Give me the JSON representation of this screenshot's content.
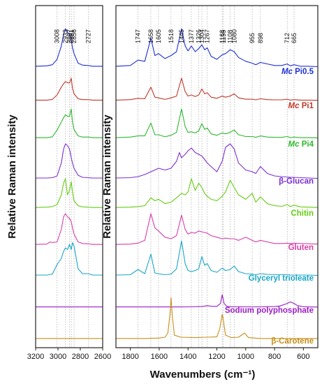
{
  "figure": {
    "xlabel": "Wavenumbers (cm⁻¹)",
    "ylabel_left": "Relative Raman intensity",
    "ylabel_right": "Relative Raman intensity"
  },
  "colors": {
    "mc_pi05": "#1f2fd6",
    "mc_pi1": "#c0392b",
    "mc_pi4": "#2eb82e",
    "glucan": "#7b2fd0",
    "chitin": "#66cc11",
    "gluten": "#d63fa8",
    "glyceryl": "#1aa6c8",
    "polyphosphate": "#9b1fc6",
    "carotene": "#c8901a",
    "guide": "#9a9a9a",
    "axis": "#222222"
  },
  "chart_data": [
    {
      "type": "line",
      "panel": "left",
      "xlim": [
        3200,
        2600
      ],
      "xticks": [
        3200,
        3000,
        2800,
        2600
      ],
      "band_positions": [
        3008,
        2933,
        2897,
        2881,
        2856,
        2727
      ],
      "series": [
        {
          "name": "Mc Pi0.5",
          "x": [
            3200,
            3100,
            3050,
            3008,
            2970,
            2950,
            2933,
            2915,
            2897,
            2881,
            2870,
            2856,
            2820,
            2780,
            2727,
            2690,
            2600
          ],
          "y": [
            0.02,
            0.03,
            0.06,
            0.2,
            0.55,
            0.85,
            1.0,
            0.9,
            0.85,
            0.7,
            0.5,
            0.35,
            0.1,
            0.05,
            0.04,
            0.02,
            0.02
          ]
        },
        {
          "name": "Mc Pi1",
          "x": [
            3200,
            3100,
            3050,
            3008,
            2970,
            2950,
            2933,
            2915,
            2897,
            2881,
            2870,
            2856,
            2820,
            2780,
            2727,
            2690,
            2600
          ],
          "y": [
            0.02,
            0.02,
            0.05,
            0.25,
            0.6,
            0.75,
            0.85,
            0.8,
            0.78,
            1.0,
            0.55,
            0.3,
            0.08,
            0.04,
            0.04,
            0.02,
            0.02
          ]
        },
        {
          "name": "Mc Pi4",
          "x": [
            3200,
            3100,
            3050,
            3008,
            2970,
            2950,
            2933,
            2915,
            2897,
            2881,
            2870,
            2856,
            2820,
            2780,
            2727,
            2690,
            2600
          ],
          "y": [
            0.02,
            0.02,
            0.05,
            0.28,
            0.55,
            0.7,
            0.8,
            0.75,
            0.75,
            1.0,
            0.55,
            0.3,
            0.08,
            0.04,
            0.04,
            0.02,
            0.02
          ]
        },
        {
          "name": "β-Glucan",
          "x": [
            3200,
            3100,
            3050,
            3008,
            2970,
            2950,
            2933,
            2915,
            2897,
            2881,
            2870,
            2856,
            2820,
            2780,
            2727,
            2690,
            2600
          ],
          "y": [
            0.02,
            0.02,
            0.03,
            0.08,
            0.45,
            0.85,
            1.0,
            0.95,
            0.85,
            0.6,
            0.45,
            0.3,
            0.1,
            0.04,
            0.03,
            0.02,
            0.02
          ]
        },
        {
          "name": "Chitin",
          "x": [
            3200,
            3100,
            3050,
            3008,
            2970,
            2950,
            2933,
            2915,
            2897,
            2881,
            2870,
            2856,
            2820,
            2780,
            2727,
            2690,
            2600
          ],
          "y": [
            0.02,
            0.03,
            0.05,
            0.12,
            0.45,
            0.85,
            1.0,
            0.45,
            0.6,
            0.9,
            0.55,
            0.25,
            0.08,
            0.04,
            0.03,
            0.02,
            0.02
          ]
        },
        {
          "name": "Gluten",
          "x": [
            3200,
            3100,
            3070,
            3050,
            3008,
            2970,
            2950,
            2933,
            2915,
            2897,
            2881,
            2870,
            2856,
            2820,
            2780,
            2727,
            2690,
            2600
          ],
          "y": [
            0.02,
            0.03,
            0.1,
            0.08,
            0.1,
            0.5,
            0.9,
            1.0,
            0.9,
            0.85,
            0.75,
            0.55,
            0.35,
            0.1,
            0.05,
            0.04,
            0.02,
            0.02
          ]
        },
        {
          "name": "Glyceryl trioleate",
          "x": [
            3200,
            3100,
            3050,
            3008,
            2970,
            2950,
            2933,
            2915,
            2897,
            2881,
            2870,
            2856,
            2820,
            2780,
            2727,
            2690,
            2600
          ],
          "y": [
            0.02,
            0.02,
            0.05,
            0.32,
            0.5,
            0.7,
            0.8,
            0.75,
            0.9,
            0.75,
            0.95,
            0.85,
            0.2,
            0.06,
            0.06,
            0.02,
            0.02
          ]
        },
        {
          "name": "Sodium polyphosphate",
          "x": [
            3200,
            3000,
            2800,
            2600
          ],
          "y": [
            0.02,
            0.02,
            0.02,
            0.02
          ]
        },
        {
          "name": "β-Carotene",
          "x": [
            3200,
            3000,
            2800,
            2600
          ],
          "y": [
            0.02,
            0.02,
            0.02,
            0.02
          ]
        }
      ]
    },
    {
      "type": "line",
      "panel": "right",
      "xlim": [
        1900,
        500
      ],
      "xticks": [
        1800,
        1600,
        1400,
        1200,
        1000,
        800,
        600
      ],
      "band_positions": [
        1747,
        1658,
        1605,
        1518,
        1445,
        1377,
        1326,
        1304,
        1267,
        1163,
        1155,
        1108,
        1080,
        955,
        898,
        712,
        665
      ],
      "series": [
        {
          "name": "Mc Pi0.5",
          "x": [
            1900,
            1800,
            1747,
            1700,
            1658,
            1630,
            1605,
            1560,
            1518,
            1480,
            1445,
            1420,
            1400,
            1377,
            1350,
            1326,
            1304,
            1285,
            1267,
            1240,
            1200,
            1163,
            1140,
            1108,
            1080,
            1050,
            1000,
            955,
            930,
            898,
            850,
            800,
            750,
            712,
            690,
            665,
            620,
            560,
            500
          ],
          "y": [
            0.02,
            0.04,
            0.18,
            0.15,
            0.75,
            0.3,
            0.35,
            0.22,
            0.3,
            0.4,
            1.0,
            0.55,
            0.42,
            0.55,
            0.4,
            0.48,
            0.58,
            0.45,
            0.5,
            0.28,
            0.2,
            0.32,
            0.35,
            0.45,
            0.4,
            0.25,
            0.15,
            0.1,
            0.06,
            0.12,
            0.08,
            0.04,
            0.04,
            0.08,
            0.03,
            0.06,
            0.02,
            0.02,
            0.01
          ]
        },
        {
          "name": "Mc Pi1",
          "x": [
            1900,
            1800,
            1747,
            1700,
            1658,
            1630,
            1605,
            1560,
            1518,
            1480,
            1445,
            1420,
            1400,
            1377,
            1350,
            1326,
            1304,
            1285,
            1267,
            1240,
            1200,
            1163,
            1140,
            1108,
            1080,
            1050,
            1000,
            955,
            930,
            898,
            850,
            800,
            750,
            712,
            690,
            665,
            620,
            560,
            500
          ],
          "y": [
            0.02,
            0.04,
            0.1,
            0.08,
            0.6,
            0.15,
            0.12,
            0.05,
            0.12,
            0.2,
            1.0,
            0.4,
            0.2,
            0.25,
            0.18,
            0.25,
            0.52,
            0.3,
            0.35,
            0.15,
            0.1,
            0.2,
            0.15,
            0.2,
            0.3,
            0.12,
            0.06,
            0.06,
            0.03,
            0.08,
            0.04,
            0.03,
            0.03,
            0.06,
            0.02,
            0.04,
            0.02,
            0.02,
            0.01
          ]
        },
        {
          "name": "Mc Pi4",
          "x": [
            1900,
            1800,
            1747,
            1700,
            1658,
            1630,
            1605,
            1560,
            1518,
            1480,
            1445,
            1420,
            1400,
            1377,
            1350,
            1326,
            1304,
            1285,
            1267,
            1240,
            1200,
            1163,
            1140,
            1108,
            1080,
            1050,
            1000,
            955,
            930,
            898,
            850,
            800,
            750,
            712,
            690,
            665,
            620,
            560,
            500
          ],
          "y": [
            0.02,
            0.04,
            0.08,
            0.08,
            0.52,
            0.12,
            0.12,
            0.05,
            0.1,
            0.2,
            1.0,
            0.4,
            0.2,
            0.22,
            0.18,
            0.25,
            0.5,
            0.3,
            0.35,
            0.15,
            0.1,
            0.18,
            0.15,
            0.2,
            0.28,
            0.12,
            0.06,
            0.06,
            0.03,
            0.08,
            0.04,
            0.03,
            0.03,
            0.06,
            0.02,
            0.04,
            0.02,
            0.02,
            0.01
          ]
        },
        {
          "name": "β-Glucan",
          "x": [
            1900,
            1800,
            1747,
            1700,
            1658,
            1630,
            1605,
            1560,
            1518,
            1480,
            1460,
            1445,
            1420,
            1400,
            1377,
            1350,
            1326,
            1304,
            1285,
            1267,
            1240,
            1200,
            1163,
            1140,
            1108,
            1080,
            1050,
            1000,
            955,
            930,
            898,
            850,
            800,
            750,
            712,
            690,
            665,
            620,
            560,
            500
          ],
          "y": [
            0.02,
            0.03,
            0.06,
            0.12,
            0.2,
            0.25,
            0.3,
            0.25,
            0.3,
            0.5,
            0.75,
            0.6,
            0.7,
            0.8,
            0.88,
            0.75,
            0.7,
            0.65,
            0.55,
            0.45,
            0.35,
            0.2,
            0.5,
            0.9,
            1.0,
            0.85,
            0.45,
            0.25,
            0.2,
            0.15,
            0.35,
            0.15,
            0.08,
            0.06,
            0.05,
            0.04,
            0.04,
            0.03,
            0.02,
            0.01
          ]
        },
        {
          "name": "Chitin",
          "x": [
            1900,
            1800,
            1747,
            1700,
            1658,
            1630,
            1605,
            1560,
            1518,
            1480,
            1445,
            1420,
            1400,
            1377,
            1350,
            1326,
            1304,
            1285,
            1267,
            1240,
            1200,
            1163,
            1140,
            1108,
            1080,
            1050,
            1000,
            955,
            930,
            898,
            850,
            800,
            750,
            712,
            690,
            665,
            620,
            560,
            500
          ],
          "y": [
            0.02,
            0.03,
            0.05,
            0.08,
            0.35,
            0.25,
            0.3,
            0.15,
            0.2,
            0.35,
            0.5,
            0.45,
            0.55,
            1.0,
            0.6,
            0.85,
            0.7,
            0.5,
            0.4,
            0.3,
            0.25,
            0.4,
            0.55,
            0.95,
            0.7,
            0.45,
            0.3,
            0.5,
            0.2,
            0.38,
            0.15,
            0.08,
            0.06,
            0.12,
            0.05,
            0.1,
            0.04,
            0.03,
            0.02
          ]
        },
        {
          "name": "Gluten",
          "x": [
            1900,
            1800,
            1747,
            1700,
            1658,
            1630,
            1605,
            1560,
            1518,
            1480,
            1445,
            1420,
            1400,
            1377,
            1350,
            1326,
            1304,
            1285,
            1267,
            1240,
            1200,
            1163,
            1140,
            1108,
            1080,
            1050,
            1000,
            955,
            930,
            898,
            850,
            800,
            750,
            712,
            690,
            665,
            620,
            560,
            500
          ],
          "y": [
            0.02,
            0.03,
            0.06,
            0.15,
            1.0,
            0.55,
            0.45,
            0.25,
            0.2,
            0.3,
            0.95,
            0.5,
            0.35,
            0.4,
            0.38,
            0.45,
            0.42,
            0.4,
            0.38,
            0.3,
            0.25,
            0.2,
            0.22,
            0.2,
            0.2,
            0.15,
            0.25,
            0.15,
            0.1,
            0.15,
            0.1,
            0.05,
            0.05,
            0.06,
            0.05,
            0.06,
            0.05,
            0.04,
            0.03
          ]
        },
        {
          "name": "Glyceryl trioleate",
          "x": [
            1900,
            1800,
            1747,
            1700,
            1658,
            1630,
            1605,
            1560,
            1518,
            1480,
            1445,
            1420,
            1400,
            1377,
            1350,
            1326,
            1304,
            1285,
            1267,
            1240,
            1200,
            1163,
            1140,
            1108,
            1080,
            1050,
            1000,
            955,
            930,
            898,
            850,
            800,
            750,
            712,
            690,
            665,
            620,
            560,
            500
          ],
          "y": [
            0.02,
            0.03,
            0.18,
            0.06,
            0.62,
            0.08,
            0.06,
            0.03,
            0.05,
            0.2,
            1.0,
            0.35,
            0.15,
            0.12,
            0.15,
            0.2,
            0.55,
            0.3,
            0.35,
            0.15,
            0.1,
            0.22,
            0.15,
            0.18,
            0.28,
            0.12,
            0.06,
            0.05,
            0.03,
            0.06,
            0.04,
            0.03,
            0.03,
            0.03,
            0.02,
            0.02,
            0.02,
            0.02,
            0.01
          ]
        },
        {
          "name": "Sodium polyphosphate",
          "x": [
            1900,
            1600,
            1400,
            1300,
            1267,
            1240,
            1200,
            1175,
            1163,
            1150,
            1130,
            1100,
            1000,
            900,
            800,
            760,
            712,
            690,
            665,
            640,
            600,
            560,
            500
          ],
          "y": [
            0.02,
            0.02,
            0.03,
            0.06,
            0.12,
            0.08,
            0.06,
            0.3,
            1.0,
            0.3,
            0.06,
            0.04,
            0.03,
            0.03,
            0.05,
            0.1,
            0.3,
            0.42,
            0.3,
            0.12,
            0.04,
            0.02,
            0.01
          ]
        },
        {
          "name": "β-Carotene",
          "x": [
            1900,
            1700,
            1600,
            1560,
            1540,
            1525,
            1518,
            1510,
            1495,
            1450,
            1350,
            1270,
            1200,
            1180,
            1163,
            1155,
            1140,
            1100,
            1050,
            1008,
            980,
            900,
            700,
            500
          ],
          "y": [
            0.02,
            0.02,
            0.03,
            0.05,
            0.15,
            0.6,
            1.0,
            0.6,
            0.1,
            0.05,
            0.04,
            0.05,
            0.06,
            0.25,
            0.6,
            0.45,
            0.1,
            0.04,
            0.05,
            0.15,
            0.04,
            0.02,
            0.02,
            0.02
          ]
        }
      ]
    }
  ]
}
